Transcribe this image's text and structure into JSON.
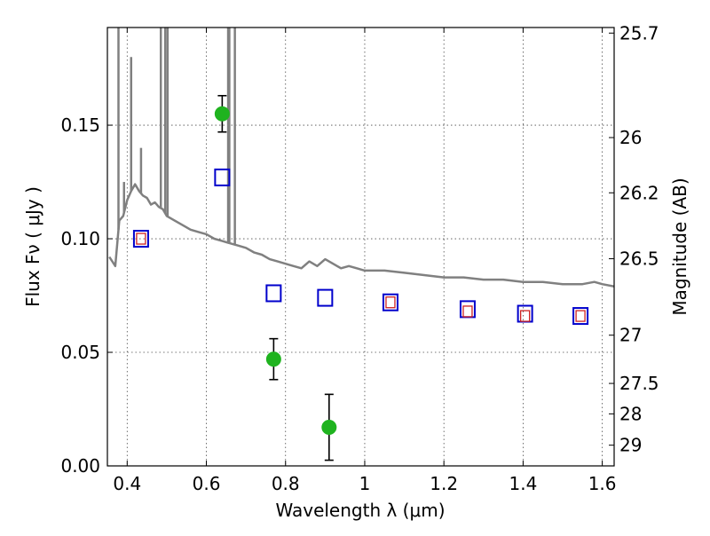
{
  "chart_data": {
    "type": "scatter",
    "title": "",
    "xlabel": "Wavelength  λ (μm)",
    "ylabel": "Flux  Fν  ( μJy )",
    "y2label": "Magnitude (AB)",
    "xlim": [
      0.35,
      1.63
    ],
    "ylim": [
      0.0,
      0.193
    ],
    "grid": true,
    "x_ticks": [
      {
        "value": 0.4,
        "label": "0.4"
      },
      {
        "value": 0.6,
        "label": "0.6"
      },
      {
        "value": 0.8,
        "label": "0.8"
      },
      {
        "value": 1.0,
        "label": "1"
      },
      {
        "value": 1.2,
        "label": "1.2"
      },
      {
        "value": 1.4,
        "label": "1.4"
      },
      {
        "value": 1.6,
        "label": "1.6"
      }
    ],
    "y_ticks": [
      {
        "value": 0.0,
        "label": "0.00"
      },
      {
        "value": 0.05,
        "label": "0.05"
      },
      {
        "value": 0.1,
        "label": "0.10"
      },
      {
        "value": 0.15,
        "label": "0.15"
      }
    ],
    "y2_ticks": [
      {
        "mag": 25.7,
        "label": "25.7"
      },
      {
        "mag": 26.0,
        "label": "26"
      },
      {
        "mag": 26.2,
        "label": "26.2"
      },
      {
        "mag": 26.5,
        "label": "26.5"
      },
      {
        "mag": 27.0,
        "label": "27"
      },
      {
        "mag": 27.5,
        "label": "27.5"
      },
      {
        "mag": 28.0,
        "label": "28"
      },
      {
        "mag": 29.0,
        "label": "29"
      }
    ],
    "colors": {
      "model_spectrum": "#808080",
      "observed": "#1fb31f",
      "model_photometry": "#0000cc",
      "model_photometry_inner": "#cc2222",
      "error_bar": "#000000"
    },
    "series": [
      {
        "style": "line",
        "x": [
          0.355,
          0.37,
          0.38,
          0.39,
          0.4,
          0.41,
          0.42,
          0.43,
          0.44,
          0.45,
          0.46,
          0.47,
          0.48,
          0.49,
          0.5,
          0.52,
          0.54,
          0.56,
          0.58,
          0.6,
          0.62,
          0.64,
          0.66,
          0.68,
          0.7,
          0.72,
          0.74,
          0.76,
          0.78,
          0.8,
          0.82,
          0.84,
          0.86,
          0.88,
          0.9,
          0.92,
          0.94,
          0.96,
          0.98,
          1.0,
          1.05,
          1.1,
          1.15,
          1.2,
          1.25,
          1.3,
          1.35,
          1.4,
          1.45,
          1.5,
          1.55,
          1.58,
          1.6,
          1.63
        ],
        "y": [
          0.092,
          0.088,
          0.108,
          0.11,
          0.117,
          0.121,
          0.124,
          0.121,
          0.119,
          0.118,
          0.115,
          0.116,
          0.114,
          0.113,
          0.11,
          0.108,
          0.106,
          0.104,
          0.103,
          0.102,
          0.1,
          0.099,
          0.098,
          0.097,
          0.096,
          0.094,
          0.093,
          0.091,
          0.09,
          0.089,
          0.088,
          0.087,
          0.09,
          0.088,
          0.091,
          0.089,
          0.087,
          0.088,
          0.087,
          0.086,
          0.086,
          0.085,
          0.084,
          0.083,
          0.083,
          0.082,
          0.082,
          0.081,
          0.081,
          0.08,
          0.08,
          0.081,
          0.08,
          0.079
        ],
        "spikes": [
          {
            "x": 0.378,
            "peak": 0.205
          },
          {
            "x": 0.392,
            "peak": 0.125
          },
          {
            "x": 0.41,
            "peak": 0.18
          },
          {
            "x": 0.435,
            "peak": 0.14
          },
          {
            "x": 0.485,
            "peak": 0.205
          },
          {
            "x": 0.496,
            "peak": 0.205
          },
          {
            "x": 0.502,
            "peak": 0.205
          },
          {
            "x": 0.655,
            "peak": 0.205
          },
          {
            "x": 0.658,
            "peak": 0.205
          },
          {
            "x": 0.672,
            "peak": 0.205
          }
        ]
      },
      {
        "style": "points-with-errors",
        "points": [
          {
            "x": 0.64,
            "y": 0.155,
            "err": 0.008
          },
          {
            "x": 0.77,
            "y": 0.047,
            "err": 0.009
          },
          {
            "x": 0.91,
            "y": 0.017,
            "err": 0.0145
          }
        ]
      },
      {
        "style": "open-squares",
        "points": [
          {
            "x": 0.435,
            "y": 0.1
          },
          {
            "x": 0.64,
            "y": 0.127
          },
          {
            "x": 0.77,
            "y": 0.076
          },
          {
            "x": 0.9,
            "y": 0.074
          },
          {
            "x": 1.065,
            "y": 0.072
          },
          {
            "x": 1.26,
            "y": 0.069
          },
          {
            "x": 1.405,
            "y": 0.067
          },
          {
            "x": 1.545,
            "y": 0.066
          }
        ]
      },
      {
        "style": "small-squares",
        "points": [
          {
            "x": 0.435,
            "y": 0.1
          },
          {
            "x": 1.065,
            "y": 0.072
          },
          {
            "x": 1.26,
            "y": 0.068
          },
          {
            "x": 1.405,
            "y": 0.066
          },
          {
            "x": 1.545,
            "y": 0.066
          }
        ]
      }
    ]
  }
}
